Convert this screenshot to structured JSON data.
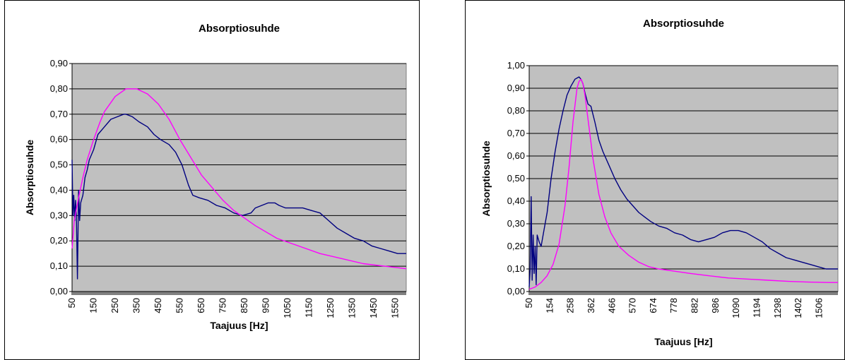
{
  "colors": {
    "plot_background": "#c0c0c0",
    "measured_line": "#000080",
    "model_line": "#ff00ff",
    "gridline": "#000000"
  },
  "chart_data": [
    {
      "type": "line",
      "title": "Absorptiosuhde",
      "xlabel": "Taajuus [Hz]",
      "ylabel": "Absorptiosuhde",
      "xlim": [
        50,
        1600
      ],
      "ylim": [
        0,
        0.9
      ],
      "x_ticks": [
        "50",
        "150",
        "250",
        "350",
        "450",
        "550",
        "650",
        "750",
        "850",
        "950",
        "1050",
        "1150",
        "1250",
        "1350",
        "1450",
        "1550"
      ],
      "y_ticks": [
        "0,00",
        "0,10",
        "0,20",
        "0,30",
        "0,40",
        "0,50",
        "0,60",
        "0,70",
        "0,80",
        "0,90"
      ],
      "grid": "horizontal",
      "series": [
        {
          "color": "#000080",
          "x": [
            50,
            54,
            58,
            62,
            66,
            70,
            75,
            80,
            85,
            90,
            100,
            110,
            120,
            130,
            150,
            170,
            200,
            230,
            260,
            290,
            300,
            330,
            360,
            400,
            430,
            460,
            500,
            530,
            560,
            590,
            610,
            640,
            680,
            720,
            760,
            800,
            840,
            880,
            900,
            930,
            960,
            990,
            1010,
            1040,
            1080,
            1120,
            1160,
            1200,
            1240,
            1280,
            1320,
            1360,
            1400,
            1440,
            1480,
            1520,
            1560,
            1600
          ],
          "values": [
            0.52,
            0.3,
            0.38,
            0.28,
            0.36,
            0.3,
            0.05,
            0.4,
            0.28,
            0.35,
            0.38,
            0.45,
            0.48,
            0.52,
            0.56,
            0.62,
            0.65,
            0.68,
            0.69,
            0.7,
            0.7,
            0.69,
            0.67,
            0.65,
            0.62,
            0.6,
            0.58,
            0.55,
            0.5,
            0.42,
            0.38,
            0.37,
            0.36,
            0.34,
            0.33,
            0.31,
            0.3,
            0.31,
            0.33,
            0.34,
            0.35,
            0.35,
            0.34,
            0.33,
            0.33,
            0.33,
            0.32,
            0.31,
            0.28,
            0.25,
            0.23,
            0.21,
            0.2,
            0.18,
            0.17,
            0.16,
            0.15,
            0.15
          ]
        },
        {
          "color": "#ff00ff",
          "x": [
            50,
            60,
            80,
            100,
            120,
            150,
            180,
            200,
            250,
            300,
            330,
            350,
            400,
            450,
            500,
            550,
            600,
            650,
            700,
            750,
            800,
            850,
            900,
            1000,
            1100,
            1200,
            1300,
            1400,
            1500,
            1600
          ],
          "values": [
            0.17,
            0.28,
            0.37,
            0.45,
            0.52,
            0.6,
            0.67,
            0.71,
            0.77,
            0.8,
            0.8,
            0.8,
            0.78,
            0.74,
            0.68,
            0.6,
            0.53,
            0.46,
            0.41,
            0.36,
            0.32,
            0.29,
            0.26,
            0.21,
            0.18,
            0.15,
            0.13,
            0.11,
            0.1,
            0.09
          ]
        }
      ]
    },
    {
      "type": "line",
      "title": "Absorptiosuhde",
      "xlabel": "Taajuus [Hz]",
      "ylabel": "Absorptiosuhde",
      "xlim": [
        50,
        1600
      ],
      "ylim": [
        0,
        1
      ],
      "x_ticks": [
        "50",
        "154",
        "258",
        "362",
        "466",
        "570",
        "674",
        "778",
        "882",
        "986",
        "1090",
        "1194",
        "1298",
        "1402",
        "1506"
      ],
      "y_ticks": [
        "0,00",
        "0,10",
        "0,20",
        "0,30",
        "0,40",
        "0,50",
        "0,60",
        "0,70",
        "0,80",
        "0,90",
        "1,00"
      ],
      "grid": "horizontal",
      "series": [
        {
          "color": "#000080",
          "x": [
            50,
            55,
            60,
            65,
            70,
            75,
            80,
            85,
            90,
            100,
            110,
            120,
            140,
            160,
            180,
            200,
            220,
            240,
            260,
            280,
            300,
            310,
            320,
            330,
            345,
            360,
            380,
            400,
            420,
            450,
            480,
            510,
            540,
            570,
            600,
            630,
            660,
            700,
            740,
            780,
            820,
            860,
            900,
            940,
            980,
            1020,
            1060,
            1100,
            1140,
            1180,
            1220,
            1260,
            1300,
            1340,
            1380,
            1420,
            1460,
            1500,
            1540,
            1580,
            1600
          ],
          "values": [
            0.02,
            0.1,
            0.42,
            0.05,
            0.25,
            0.08,
            0.2,
            0.03,
            0.25,
            0.22,
            0.2,
            0.25,
            0.35,
            0.5,
            0.62,
            0.72,
            0.8,
            0.87,
            0.91,
            0.94,
            0.95,
            0.94,
            0.92,
            0.88,
            0.83,
            0.82,
            0.75,
            0.67,
            0.62,
            0.56,
            0.5,
            0.45,
            0.41,
            0.38,
            0.35,
            0.33,
            0.31,
            0.29,
            0.28,
            0.26,
            0.25,
            0.23,
            0.22,
            0.23,
            0.24,
            0.26,
            0.27,
            0.27,
            0.26,
            0.24,
            0.22,
            0.19,
            0.17,
            0.15,
            0.14,
            0.13,
            0.12,
            0.11,
            0.1,
            0.1,
            0.1
          ]
        },
        {
          "color": "#ff00ff",
          "x": [
            50,
            80,
            110,
            140,
            170,
            200,
            230,
            250,
            270,
            290,
            300,
            310,
            320,
            330,
            350,
            370,
            400,
            430,
            460,
            500,
            550,
            600,
            650,
            700,
            780,
            860,
            950,
            1050,
            1150,
            1250,
            1350,
            1450,
            1550,
            1600
          ],
          "values": [
            0.01,
            0.02,
            0.04,
            0.07,
            0.12,
            0.21,
            0.38,
            0.55,
            0.75,
            0.9,
            0.93,
            0.94,
            0.92,
            0.87,
            0.73,
            0.59,
            0.43,
            0.33,
            0.26,
            0.2,
            0.16,
            0.13,
            0.11,
            0.1,
            0.09,
            0.08,
            0.07,
            0.06,
            0.055,
            0.05,
            0.045,
            0.042,
            0.04,
            0.04
          ]
        }
      ]
    }
  ]
}
